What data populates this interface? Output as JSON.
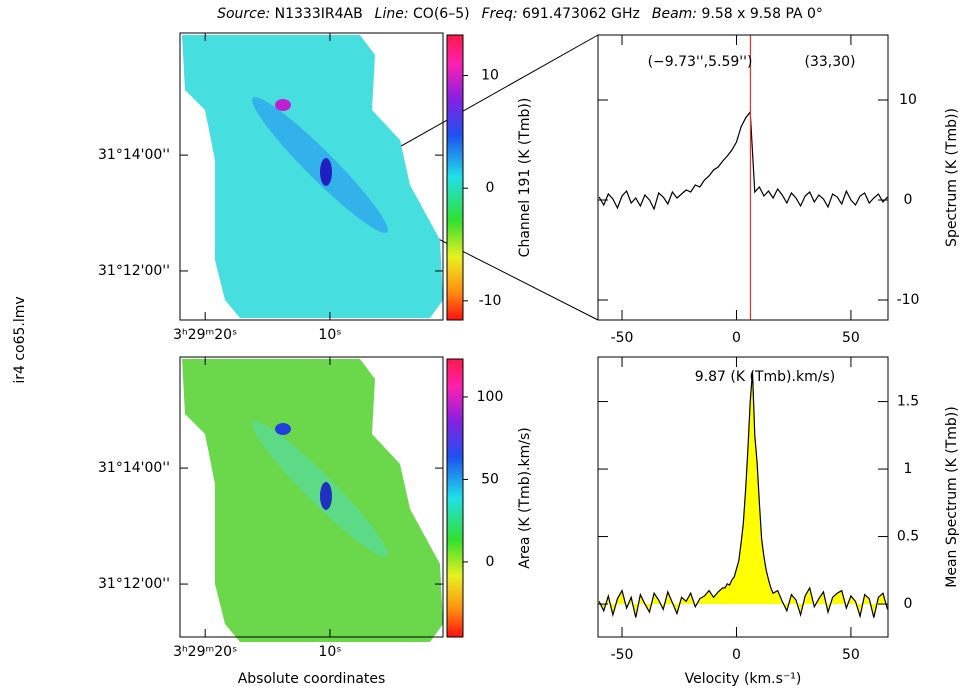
{
  "header": {
    "source_label": "Source:",
    "source": "N1333IR4AB",
    "line_label": "Line:",
    "line": "CO(6–5)",
    "freq_label": "Freq:",
    "freq": "691.473062 GHz",
    "beam_label": "Beam:",
    "beam": "9.58 x 9.58 PA 0°"
  },
  "file_label": "ir4 co65.lmv",
  "chart_data": [
    {
      "type": "map",
      "colorbar_label": "Channel 191 (K (Tmb))",
      "clim": [
        -11.7,
        13.6
      ],
      "cticks": [
        -10,
        0,
        10
      ],
      "xlim": [
        52.3417,
        52.254
      ],
      "ylim": [
        31.1859,
        31.2684
      ],
      "xticks": [
        {
          "value": 52.3333,
          "label": "3ʰ29ᵐ20ˢ"
        },
        {
          "value": 52.2917,
          "label": "10ˢ"
        }
      ],
      "yticks": [
        {
          "value": 31.2333,
          "label": "31°14'00''"
        },
        {
          "value": 31.2,
          "label": "31°12'00''"
        }
      ]
    },
    {
      "type": "line",
      "ylabel": "Spectrum (K (Tmb))",
      "color": "#000000",
      "annotations": [
        "(−9.73'',5.59'')",
        "(33,30)"
      ],
      "marker_x": 6.1,
      "marker_color": "#e8302a",
      "xlim": [
        -60.5,
        66.2
      ],
      "ylim": [
        -12,
        16.5
      ],
      "xticks": [
        -50,
        0,
        50
      ],
      "yticks": [
        -10,
        0,
        10
      ],
      "x": [
        -60,
        -58,
        -56,
        -54,
        -52,
        -50,
        -48,
        -46,
        -44,
        -42,
        -40,
        -38,
        -36,
        -34,
        -32,
        -30,
        -28,
        -26,
        -24,
        -22,
        -20,
        -18,
        -16,
        -14,
        -12,
        -10,
        -8,
        -6,
        -4,
        -2,
        0,
        2,
        4,
        6,
        8,
        10,
        12,
        14,
        16,
        18,
        20,
        22,
        24,
        26,
        28,
        30,
        32,
        34,
        36,
        38,
        40,
        42,
        44,
        46,
        48,
        50,
        52,
        54,
        56,
        58,
        60,
        62,
        64,
        66
      ],
      "values": [
        0.3,
        -0.5,
        0.6,
        0.1,
        -0.8,
        0.4,
        0.9,
        -0.3,
        0.2,
        -0.6,
        0.5,
        0.0,
        -0.9,
        0.7,
        0.3,
        -0.4,
        0.8,
        0.2,
        0.6,
        1.0,
        0.8,
        1.5,
        1.3,
        2.0,
        2.4,
        3.0,
        3.3,
        3.9,
        4.4,
        5.0,
        5.8,
        7.3,
        8.2,
        8.8,
        0.8,
        1.3,
        0.4,
        0.9,
        0.2,
        1.1,
        0.5,
        -0.3,
        0.7,
        0.2,
        -0.6,
        0.4,
        0.8,
        -0.2,
        0.5,
        0.1,
        -0.7,
        0.6,
        0.3,
        -0.4,
        0.9,
        0.0,
        -0.5,
        0.4,
        0.7,
        -0.3,
        0.2,
        0.6,
        -0.2,
        0.3
      ]
    },
    {
      "type": "map",
      "colorbar_label": "Area (K (Tmb).km/s)",
      "clim": [
        -45.5,
        123
      ],
      "cticks": [
        0,
        50,
        100
      ],
      "xlabel": "Absolute coordinates",
      "xlim": [
        52.3417,
        52.254
      ],
      "ylim": [
        31.1848,
        31.2652
      ],
      "xticks": [
        {
          "value": 52.3333,
          "label": "3ʰ29ᵐ20ˢ"
        },
        {
          "value": 52.2917,
          "label": "10ˢ"
        }
      ],
      "yticks": [
        {
          "value": 31.2333,
          "label": "31°14'00''"
        },
        {
          "value": 31.2,
          "label": "31°12'00''"
        }
      ]
    },
    {
      "type": "area",
      "ylabel": "Mean Spectrum (K (Tmb))",
      "xlabel": "Velocity (km.s⁻¹)",
      "color": "#000000",
      "fill": "#ffff00",
      "annotations": [
        "9.87 (K (Tmb).km/s)"
      ],
      "xlim": [
        -60.5,
        66.2
      ],
      "ylim": [
        -0.244,
        1.83
      ],
      "xticks": [
        -50,
        0,
        50
      ],
      "yticks": [
        0,
        0.5,
        1,
        1.5
      ],
      "x": [
        -60,
        -58,
        -56,
        -54,
        -52,
        -50,
        -48,
        -46,
        -44,
        -42,
        -40,
        -38,
        -36,
        -34,
        -32,
        -30,
        -28,
        -26,
        -24,
        -22,
        -20,
        -18,
        -16,
        -14,
        -12,
        -10,
        -8,
        -6,
        -5,
        -4,
        -3,
        -2,
        -1,
        0,
        1,
        2,
        3,
        4,
        5,
        6,
        7,
        8,
        9,
        10,
        11,
        12,
        13,
        14,
        15,
        16,
        18,
        20,
        22,
        24,
        26,
        28,
        30,
        32,
        34,
        36,
        38,
        40,
        42,
        44,
        46,
        48,
        50,
        52,
        54,
        56,
        58,
        60,
        62,
        64,
        66
      ],
      "values": [
        0.02,
        -0.05,
        0.06,
        -0.08,
        0.04,
        0.1,
        -0.03,
        0.05,
        -0.1,
        0.07,
        0.0,
        -0.06,
        0.08,
        0.03,
        -0.04,
        0.09,
        0.01,
        -0.07,
        0.05,
        0.02,
        0.08,
        -0.02,
        0.04,
        0.06,
        0.1,
        0.05,
        0.09,
        0.12,
        0.12,
        0.15,
        0.14,
        0.18,
        0.2,
        0.26,
        0.32,
        0.45,
        0.6,
        0.85,
        1.15,
        1.5,
        1.72,
        1.25,
        1.05,
        0.75,
        0.48,
        0.35,
        0.25,
        0.18,
        0.12,
        0.08,
        0.1,
        0.02,
        -0.05,
        0.07,
        0.03,
        -0.08,
        0.06,
        0.12,
        -0.02,
        0.04,
        0.09,
        -0.06,
        0.05,
        0.08,
        0.1,
        -0.03,
        0.06,
        0.02,
        -0.09,
        0.07,
        0.04,
        -0.1,
        0.05,
        0.08,
        -0.04
      ]
    }
  ]
}
